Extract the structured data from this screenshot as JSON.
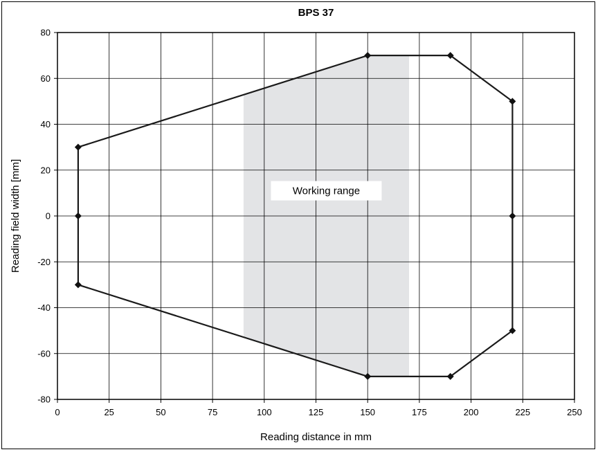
{
  "chart_data": {
    "type": "line",
    "title": "BPS 37",
    "xlabel": "Reading distance in mm",
    "ylabel": "Reading field width [mm]",
    "xlim": [
      0,
      250
    ],
    "ylim": [
      -80,
      80
    ],
    "xticks": [
      0,
      25,
      50,
      75,
      100,
      125,
      150,
      175,
      200,
      225,
      250
    ],
    "yticks": [
      -80,
      -60,
      -40,
      -20,
      0,
      20,
      40,
      60,
      80
    ],
    "grid": true,
    "series": [
      {
        "color": "#1a1a1a",
        "x": [
          10,
          10,
          10,
          150,
          190,
          220,
          220,
          220,
          190,
          150,
          10
        ],
        "y": [
          30,
          0,
          -30,
          -70,
          -70,
          -50,
          0,
          50,
          70,
          70,
          30
        ]
      }
    ],
    "working_range": {
      "label": "Working range",
      "x_from": 90,
      "x_to": 170,
      "color": "#e3e4e6"
    }
  }
}
